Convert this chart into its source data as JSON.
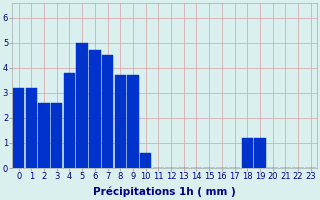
{
  "values": [
    3.2,
    3.2,
    2.6,
    2.6,
    3.8,
    5.0,
    4.7,
    4.5,
    3.7,
    3.7,
    0.6,
    0,
    0,
    0,
    0,
    0,
    0,
    0,
    1.2,
    1.2,
    0,
    0,
    0,
    0
  ],
  "bar_color": "#0033cc",
  "bar_edge_color": "#0033cc",
  "background_color": "#daf0ef",
  "grid_color": "#d8a0a0",
  "xlabel": "Précipitations 1h ( mm )",
  "xlabel_color": "#00008b",
  "xlabel_fontsize": 7.5,
  "tick_color": "#00008b",
  "tick_fontsize": 6,
  "ytick_values": [
    0,
    1,
    2,
    3,
    4,
    5,
    6
  ],
  "ylim": [
    0,
    6.6
  ],
  "xlim": [
    -0.5,
    23.5
  ],
  "n_bars": 24
}
